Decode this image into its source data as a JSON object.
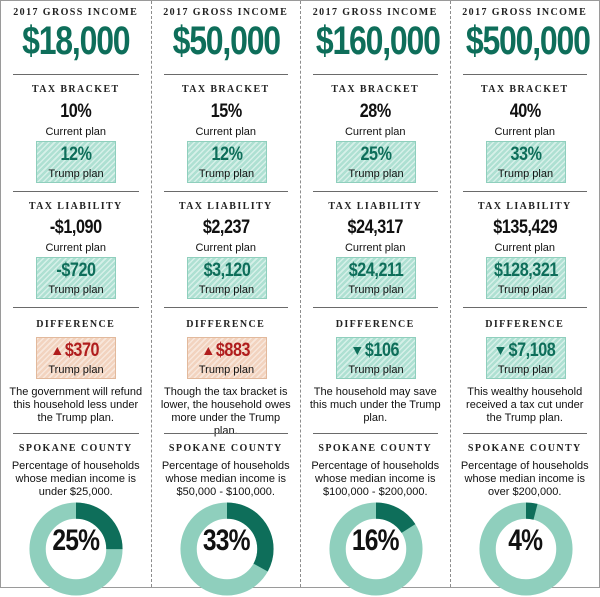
{
  "labels": {
    "gross_income": "2017 GROSS INCOME",
    "tax_bracket": "TAX BRACKET",
    "tax_liability": "TAX LIABILITY",
    "difference": "DIFFERENCE",
    "county": "SPOKANE COUNTY",
    "current_plan": "Current plan",
    "trump_plan": "Trump plan"
  },
  "colors": {
    "accent_green": "#0e6e5a",
    "box_green": "#aee0d2",
    "box_salmon": "#f2d3bf",
    "increase_red": "#b01d1d",
    "donut_light": "#8fcfbd",
    "donut_dark": "#0e6e5a"
  },
  "columns": [
    {
      "income": "$18,000",
      "bracket_current": "10%",
      "bracket_trump": "12%",
      "liability_current": "-$1,090",
      "liability_trump": "-$720",
      "difference": "$370",
      "direction": "up",
      "difference_icon": "triangle-up-icon",
      "note": "The government will refund this household less under the Trump plan.",
      "county_text": "Percentage of households whose median income is under $25,000.",
      "percent_label": "25%",
      "percent": 25
    },
    {
      "income": "$50,000",
      "bracket_current": "15%",
      "bracket_trump": "12%",
      "liability_current": "$2,237",
      "liability_trump": "$3,120",
      "difference": "$883",
      "direction": "up",
      "difference_icon": "triangle-up-icon",
      "note": "Though the tax bracket is lower, the household owes more under the Trump plan.",
      "county_text": "Percentage of households whose median income is $50,000 - $100,000.",
      "percent_label": "33%",
      "percent": 33
    },
    {
      "income": "$160,000",
      "bracket_current": "28%",
      "bracket_trump": "25%",
      "liability_current": "$24,317",
      "liability_trump": "$24,211",
      "difference": "$106",
      "direction": "down",
      "difference_icon": "triangle-down-icon",
      "note": "The household may save this much under the Trump plan.",
      "county_text": "Percentage of households whose median income is $100,000 - $200,000.",
      "percent_label": "16%",
      "percent": 16
    },
    {
      "income": "$500,000",
      "bracket_current": "40%",
      "bracket_trump": "33%",
      "liability_current": "$135,429",
      "liability_trump": "$128,321",
      "difference": "$7,108",
      "direction": "down",
      "difference_icon": "triangle-down-icon",
      "note": "This wealthy household received a tax cut under the Trump plan.",
      "county_text": "Percentage of households whose median income is over $200,000.",
      "percent_label": "4%",
      "percent": 4
    }
  ]
}
